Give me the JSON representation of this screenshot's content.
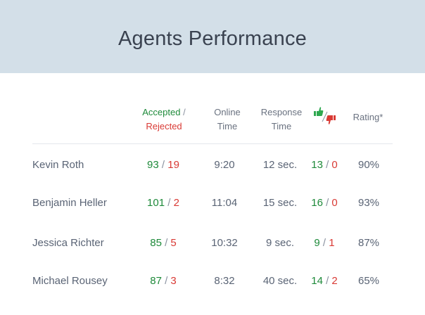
{
  "title": "Agents Performance",
  "headers": {
    "accepted": "Accepted",
    "separator": "/",
    "rejected": "Rejected",
    "online_1": "Online",
    "online_2": "Time",
    "response_1": "Response",
    "response_2": "Time",
    "feedback_icon": "thumbs-up-down-icon",
    "rating": "Rating*"
  },
  "colors": {
    "positive": "#1e8a3a",
    "negative": "#d93a35",
    "header_bg": "#d3dfe8"
  },
  "rows": [
    {
      "name": "Kevin Roth",
      "accepted": "93",
      "rejected": "19",
      "online": "9:20",
      "response": "12 sec.",
      "up": "13",
      "down": "0",
      "rating": "90%"
    },
    {
      "name": "Benjamin Heller",
      "accepted": "101",
      "rejected": "2",
      "online": "11:04",
      "response": "15 sec.",
      "up": "16",
      "down": "0",
      "rating": "93%"
    },
    {
      "name": "Jessica Richter",
      "accepted": "85",
      "rejected": "5",
      "online": "10:32",
      "response": "9 sec.",
      "up": "9",
      "down": "1",
      "rating": "87%"
    },
    {
      "name": "Michael Rousey",
      "accepted": "87",
      "rejected": "3",
      "online": "8:32",
      "response": "40 sec.",
      "up": "14",
      "down": "2",
      "rating": "65%"
    }
  ]
}
